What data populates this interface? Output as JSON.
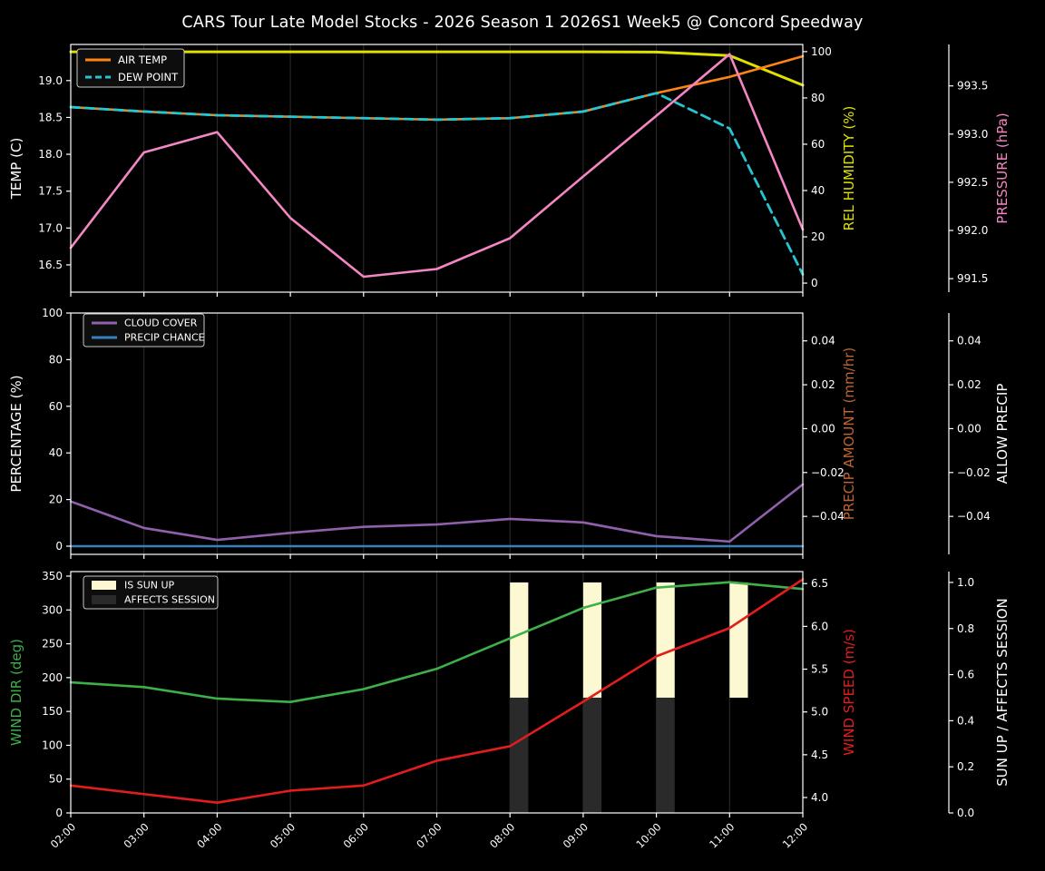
{
  "title": "CARS Tour Late Model Stocks - 2026 Season 1 2026S1 Week5 @ Concord Speedway",
  "x_axis": {
    "categories": [
      "02:00",
      "03:00",
      "04:00",
      "05:00",
      "06:00",
      "07:00",
      "08:00",
      "09:00",
      "10:00",
      "11:00",
      "12:00"
    ]
  },
  "colors": {
    "background": "#000000",
    "text": "#ffffff",
    "grid": "#2d2d2d",
    "spine": "#ffffff",
    "air_temp": "#ff8512",
    "dew_point": "#25c6d2",
    "rel_humidity": "#e0e000",
    "pressure": "#f487c3",
    "cloud_cover": "#9160ac",
    "precip_chance": "#3a80c0",
    "precip_amount_label": "#bd6430",
    "wind_dir": "#3eb04a",
    "wind_speed": "#e21d1d",
    "sun_up_bar": "#fcf9d2",
    "affects_session_bar": "#2a2a2a"
  },
  "chart_data": [
    {
      "name": "temperature-humidity-pressure",
      "type": "line",
      "categories": [
        "02:00",
        "03:00",
        "04:00",
        "05:00",
        "06:00",
        "07:00",
        "08:00",
        "09:00",
        "10:00",
        "11:00",
        "12:00"
      ],
      "legend": {
        "position": "upper-left",
        "items": [
          {
            "label": "AIR TEMP",
            "color_key": "air_temp",
            "style": "line"
          },
          {
            "label": "DEW POINT",
            "color_key": "dew_point",
            "style": "dashed-line"
          }
        ]
      },
      "axes": {
        "left": {
          "label": "TEMP (C)",
          "color": "#ffffff",
          "min": 16.13,
          "max": 19.49,
          "ticks": [
            "16.5",
            "17.0",
            "17.5",
            "18.0",
            "18.5",
            "19.0"
          ]
        },
        "right1": {
          "label": "REL HUMIDITY (%)",
          "color": "#e0e000",
          "min": -3.9,
          "max": 103.1,
          "ticks": [
            "0",
            "20",
            "40",
            "60",
            "80",
            "100"
          ]
        },
        "right2": {
          "label": "PRESSURE (hPa)",
          "color": "#f487c3",
          "min": 991.36,
          "max": 993.93,
          "ticks": [
            "991.5",
            "992.0",
            "992.5",
            "993.0",
            "993.5"
          ]
        }
      },
      "series": [
        {
          "name": "REL HUMIDITY",
          "axis": "right1",
          "color_key": "rel_humidity",
          "dash": null,
          "width": 3,
          "values": [
            99.9,
            99.9,
            99.9,
            99.9,
            99.9,
            99.9,
            99.9,
            99.9,
            99.8,
            98.3,
            85.5
          ]
        },
        {
          "name": "AIR TEMP",
          "axis": "left",
          "color_key": "air_temp",
          "dash": null,
          "width": 2.6,
          "values": [
            18.64,
            18.58,
            18.53,
            18.51,
            18.49,
            18.47,
            18.49,
            18.58,
            18.83,
            19.05,
            19.33
          ]
        },
        {
          "name": "DEW POINT",
          "axis": "left",
          "color_key": "dew_point",
          "dash": "10 6",
          "width": 2.8,
          "values": [
            18.64,
            18.58,
            18.53,
            18.51,
            18.49,
            18.47,
            18.49,
            18.58,
            18.83,
            18.35,
            16.37
          ]
        },
        {
          "name": "PRESSURE",
          "axis": "right2",
          "color_key": "pressure",
          "dash": null,
          "width": 2.6,
          "values": [
            991.82,
            992.81,
            993.02,
            992.13,
            991.52,
            991.6,
            991.92,
            992.56,
            993.19,
            993.83,
            992.01
          ]
        }
      ]
    },
    {
      "name": "cloud-precip",
      "type": "line",
      "categories": [
        "02:00",
        "03:00",
        "04:00",
        "05:00",
        "06:00",
        "07:00",
        "08:00",
        "09:00",
        "10:00",
        "11:00",
        "12:00"
      ],
      "legend": {
        "position": "upper-left",
        "items": [
          {
            "label": "CLOUD COVER",
            "color_key": "cloud_cover",
            "style": "line"
          },
          {
            "label": "PRECIP CHANCE",
            "color_key": "precip_chance",
            "style": "line"
          }
        ]
      },
      "axes": {
        "left": {
          "label": "PERCENTAGE (%)",
          "color": "#ffffff",
          "min": -3.5,
          "max": 100.0,
          "ticks": [
            "0",
            "20",
            "40",
            "60",
            "80",
            "100"
          ]
        },
        "right1": {
          "label": "PRECIP AMOUNT (mm/hr)",
          "color": "#bd6430",
          "min": -0.0573,
          "max": 0.0527,
          "ticks": [
            "0.04",
            "0.02",
            "0.00",
            "−0.02",
            "−0.04"
          ]
        },
        "right2": {
          "label": "ALLOW PRECIP",
          "color": "#ffffff",
          "min": -0.0573,
          "max": 0.0527,
          "ticks": [
            "0.04",
            "0.02",
            "0.00",
            "−0.02",
            "−0.04"
          ]
        }
      },
      "series": [
        {
          "name": "CLOUD COVER",
          "axis": "left",
          "color_key": "cloud_cover",
          "dash": null,
          "width": 2.6,
          "values": [
            19.2,
            7.8,
            2.7,
            5.7,
            8.3,
            9.3,
            11.7,
            10.2,
            4.3,
            2.0,
            26.5
          ]
        },
        {
          "name": "PRECIP CHANCE",
          "axis": "left",
          "color_key": "precip_chance",
          "dash": null,
          "width": 2.6,
          "values": [
            0,
            0,
            0,
            0,
            0,
            0,
            0,
            0,
            0,
            0,
            0
          ]
        }
      ]
    },
    {
      "name": "wind-sun",
      "type": "line+bar",
      "categories": [
        "02:00",
        "03:00",
        "04:00",
        "05:00",
        "06:00",
        "07:00",
        "08:00",
        "09:00",
        "10:00",
        "11:00",
        "12:00"
      ],
      "x_tick_labels": true,
      "legend": {
        "position": "upper-left",
        "items": [
          {
            "label": "IS SUN UP",
            "color_key": "sun_up_bar",
            "style": "patch"
          },
          {
            "label": "AFFECTS SESSION",
            "color_key": "affects_session_bar",
            "style": "patch"
          }
        ]
      },
      "axes": {
        "left": {
          "label": "WIND DIR (deg)",
          "color": "#3eb04a",
          "min": 0,
          "max": 356.7,
          "ticks": [
            "0",
            "50",
            "100",
            "150",
            "200",
            "250",
            "300",
            "350"
          ]
        },
        "right1": {
          "label": "WIND SPEED (m/s)",
          "color": "#e21d1d",
          "min": 3.82,
          "max": 6.64,
          "ticks": [
            "4.0",
            "4.5",
            "5.0",
            "5.5",
            "6.0",
            "6.5"
          ]
        },
        "right2": {
          "label": "SUN UP / AFFECTS SESSION",
          "color": "#ffffff",
          "min": 0.0,
          "max": 1.047,
          "ticks": [
            "0.0",
            "0.2",
            "0.4",
            "0.6",
            "0.8",
            "1.0"
          ]
        }
      },
      "bars": [
        {
          "name": "IS SUN UP",
          "axis": "right2",
          "color_key": "sun_up_bar",
          "hours": [
            "08:00",
            "09:00",
            "10:00",
            "11:00"
          ],
          "base": 0.5,
          "top": 1.0,
          "width_hours": 0.25
        },
        {
          "name": "AFFECTS SESSION",
          "axis": "right2",
          "color_key": "affects_session_bar",
          "hours": [
            "08:00",
            "09:00",
            "10:00"
          ],
          "base": 0.0,
          "top": 0.5,
          "width_hours": 0.25
        }
      ],
      "series": [
        {
          "name": "WIND DIR",
          "axis": "left",
          "color_key": "wind_dir",
          "dash": null,
          "width": 2.6,
          "values": [
            193,
            186,
            169,
            164,
            183,
            213,
            258,
            303,
            333,
            341,
            331
          ]
        },
        {
          "name": "WIND SPEED",
          "axis": "right1",
          "color_key": "wind_speed",
          "dash": null,
          "width": 2.6,
          "values": [
            4.14,
            4.04,
            3.94,
            4.08,
            4.14,
            4.43,
            4.6,
            5.12,
            5.65,
            5.98,
            6.55
          ]
        }
      ]
    }
  ]
}
